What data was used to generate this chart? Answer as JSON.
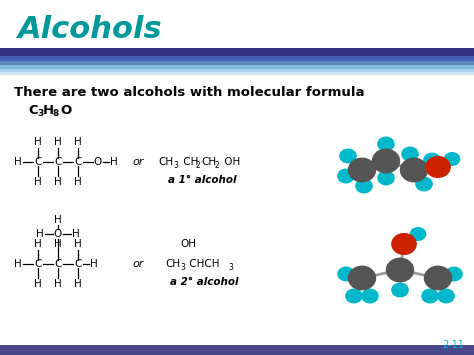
{
  "title": "Alcohols",
  "title_color": "#009999",
  "bg_color": "#ffffff",
  "header_bg": "#ffffff",
  "slide_number": "2-11",
  "alcohol1_label": "a 1° alcohol",
  "alcohol2_label": "a 2° alcohol",
  "gray_color": "#555555",
  "cyan_color": "#00b8cc",
  "red_color": "#cc2200",
  "bond_color": "#aaaaaa",
  "stripe_dark": "#1a1a6e",
  "stripe_mid": "#3a6cb0",
  "stripe_light": "#7ab8e8"
}
